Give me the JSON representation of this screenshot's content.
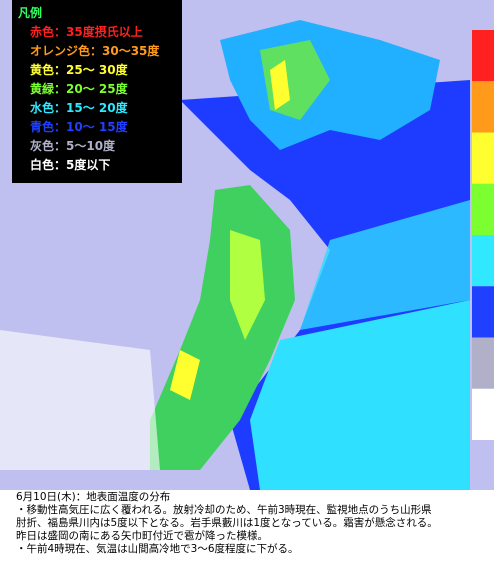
{
  "legend": {
    "title": "凡例",
    "items": [
      {
        "label": "赤色：35度摂氏以上",
        "color": "#ff2020"
      },
      {
        "label": "オレンジ色：30〜35度",
        "color": "#ff9a1a"
      },
      {
        "label": "黄色：25〜 30度",
        "color": "#ffff30"
      },
      {
        "label": "黄緑：20〜 25度",
        "color": "#7cff30"
      },
      {
        "label": "水色：15〜 20度",
        "color": "#30e8ff"
      },
      {
        "label": "青色：10〜 15度",
        "color": "#2040ff"
      },
      {
        "label": "灰色：5〜10度",
        "color": "#b0b0c8"
      },
      {
        "label": "白色：5度以下",
        "color": "#ffffff"
      }
    ]
  },
  "caption": {
    "title": "6月10日(木)：地表面温度の分布",
    "lines": [
      "・移動性高気圧に広く覆われる。放射冷却のため、午前3時現在、監視地点のうち山形県",
      "肘折、福島県川内は5度以下となる。岩手県藪川は1度となっている。霜害が懸念される。",
      "昨日は盛岡の南にある矢巾町付近で雹が降った模様。",
      "・午前4時現在、気温は山間高冷地で3〜6度程度に下がる。"
    ]
  }
}
